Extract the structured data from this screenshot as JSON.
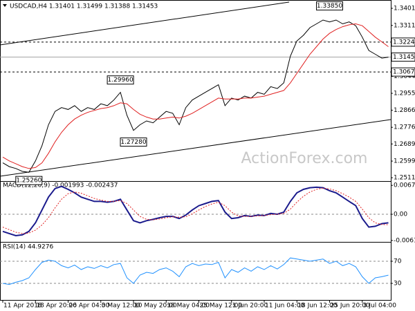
{
  "chart_data": [
    {
      "type": "line",
      "title": "USDCAD,H4  1.31401 1.31499 1.31388 1.31453",
      "watermark": "ActionForex.com",
      "ylim": [
        1.2494,
        1.3427
      ],
      "yticks": [
        1.34015,
        1.33115,
        {
          "value": 1.3044,
          "label": "1.30440"
        },
        {
          "value": 1.2955,
          "label": "1.29550"
        },
        1.28665,
        1.27765,
        {
          "value": 1.2689,
          "label": "1.26890"
        },
        {
          "value": 1.2599,
          "label": "1.25990"
        },
        1.25115
      ],
      "levels": [
        {
          "value": 1.3224,
          "label": "1.32240",
          "style": "dashed",
          "color": "#000000"
        },
        {
          "value": 1.31453,
          "label": "1.31453",
          "style": "solid",
          "color": "#a0a0a0"
        },
        {
          "value": 1.3067,
          "label": "1.30670",
          "style": "dashed",
          "color": "#000000"
        }
      ],
      "annotations": [
        {
          "value": 1.3385,
          "label": "1.33850",
          "at": 50
        },
        {
          "value": 1.2996,
          "label": "1.29960",
          "at": 18
        },
        {
          "value": 1.2728,
          "label": "1.27280",
          "at": 20
        },
        {
          "value": 1.2526,
          "label": "1.25260",
          "at": 4
        }
      ],
      "series": [
        {
          "color": "#000000",
          "style": "solid",
          "values": [
            1.259,
            1.257,
            1.256,
            1.2545,
            1.254,
            1.26,
            1.268,
            1.279,
            1.286,
            1.288,
            1.287,
            1.289,
            1.286,
            1.288,
            1.287,
            1.29,
            1.289,
            1.292,
            1.296,
            1.284,
            1.276,
            1.279,
            1.281,
            1.28,
            1.283,
            1.286,
            1.285,
            1.279,
            1.288,
            1.292,
            1.294,
            1.296,
            1.298,
            1.3,
            1.289,
            1.293,
            1.292,
            1.294,
            1.293,
            1.296,
            1.295,
            1.299,
            1.298,
            1.301,
            1.315,
            1.323,
            1.326,
            1.33,
            1.332,
            1.334,
            1.333,
            1.334,
            1.332,
            1.333,
            1.331,
            1.325,
            1.318,
            1.316,
            1.314,
            1.3145
          ]
        },
        {
          "color": "#e02020",
          "style": "solid",
          "values": [
            1.262,
            1.26,
            1.2585,
            1.257,
            1.256,
            1.2565,
            1.259,
            1.264,
            1.27,
            1.275,
            1.279,
            1.282,
            1.284,
            1.2855,
            1.2865,
            1.2875,
            1.288,
            1.289,
            1.2905,
            1.29,
            1.287,
            1.2845,
            1.283,
            1.282,
            1.282,
            1.2825,
            1.283,
            1.2825,
            1.2835,
            1.285,
            1.287,
            1.289,
            1.291,
            1.293,
            1.2925,
            1.2925,
            1.2925,
            1.293,
            1.293,
            1.2935,
            1.294,
            1.295,
            1.296,
            1.297,
            1.301,
            1.306,
            1.311,
            1.316,
            1.32,
            1.324,
            1.327,
            1.329,
            1.3305,
            1.3315,
            1.332,
            1.331,
            1.328,
            1.325,
            1.3225,
            1.32
          ]
        }
      ]
    },
    {
      "type": "line",
      "title": "MACD(12,26,9) -0.001993 -0.002437",
      "ylim": [
        -0.00645,
        0.00758
      ],
      "yticks": [
        0.006745,
        {
          "value": 0,
          "label": "0.00"
        },
        -0.006115
      ],
      "series": [
        {
          "color": "#1a1a8c",
          "style": "solid",
          "values": [
            -0.004,
            -0.0045,
            -0.005,
            -0.0048,
            -0.004,
            -0.002,
            0.001,
            0.004,
            0.006,
            0.0065,
            0.0058,
            0.005,
            0.004,
            0.0035,
            0.003,
            0.003,
            0.0028,
            0.003,
            0.0035,
            0.001,
            -0.0015,
            -0.002,
            -0.0015,
            -0.0012,
            -0.0008,
            -0.0005,
            -0.0005,
            -0.001,
            -0.0002,
            0.001,
            0.002,
            0.0025,
            0.003,
            0.0032,
            0.0005,
            -0.001,
            -0.0008,
            -0.0003,
            -0.0005,
            -0.0002,
            -0.0003,
            0.0002,
            0.0,
            0.0005,
            0.003,
            0.005,
            0.0058,
            0.0062,
            0.0063,
            0.0062,
            0.0055,
            0.005,
            0.004,
            0.003,
            0.002,
            -0.001,
            -0.003,
            -0.0028,
            -0.0022,
            -0.001993
          ]
        },
        {
          "color": "#e02020",
          "style": "dotted",
          "values": [
            -0.003,
            -0.0036,
            -0.0042,
            -0.0045,
            -0.0044,
            -0.0037,
            -0.0025,
            -0.0008,
            0.0015,
            0.0035,
            0.0048,
            0.0052,
            0.0049,
            0.0043,
            0.0037,
            0.0033,
            0.003,
            0.003,
            0.0032,
            0.0025,
            0.001,
            -0.0005,
            -0.0012,
            -0.0013,
            -0.0011,
            -0.0008,
            -0.0006,
            -0.0007,
            -0.0006,
            0.0001,
            0.001,
            0.0018,
            0.0024,
            0.0028,
            0.002,
            0.0005,
            -0.0004,
            -0.0005,
            -0.0005,
            -0.0004,
            -0.0003,
            -0.0001,
            0.0,
            0.0002,
            0.0012,
            0.0028,
            0.0042,
            0.0052,
            0.0058,
            0.0061,
            0.0059,
            0.0055,
            0.0048,
            0.004,
            0.003,
            0.0012,
            -0.0008,
            -0.002,
            -0.0024,
            -0.002437
          ]
        }
      ]
    },
    {
      "type": "line",
      "title": "RSI(14) 44.9276",
      "ylim": [
        0,
        100
      ],
      "yticks": [
        70,
        30
      ],
      "categories": [
        "11 Apr 2018",
        null,
        null,
        null,
        null,
        "18 Apr 20:00",
        null,
        null,
        null,
        null,
        "26 Apr 04:00",
        null,
        null,
        null,
        null,
        "3 May 12:00",
        null,
        null,
        null,
        null,
        "10 May 20:00",
        null,
        null,
        null,
        null,
        "18 May 04:00",
        null,
        null,
        null,
        null,
        "25 May 12:00",
        null,
        null,
        null,
        null,
        "1 Jun 20:00",
        null,
        null,
        null,
        null,
        "11 Jun 04:00",
        null,
        null,
        null,
        null,
        "18 Jun 12:00",
        null,
        null,
        null,
        null,
        "25 Jun 20:00",
        null,
        null,
        null,
        null,
        "3 Jul 04:00",
        null,
        null,
        null,
        null
      ],
      "series": [
        {
          "color": "#1e90ff",
          "style": "solid",
          "values": [
            30,
            28,
            32,
            35,
            40,
            55,
            68,
            72,
            70,
            62,
            58,
            63,
            55,
            60,
            57,
            62,
            58,
            64,
            66,
            40,
            30,
            45,
            50,
            48,
            55,
            58,
            52,
            42,
            60,
            66,
            62,
            65,
            64,
            68,
            40,
            55,
            50,
            58,
            52,
            60,
            55,
            62,
            56,
            64,
            76,
            74,
            72,
            70,
            72,
            74,
            66,
            70,
            62,
            66,
            60,
            42,
            30,
            40,
            42,
            44.9276
          ]
        }
      ]
    }
  ]
}
